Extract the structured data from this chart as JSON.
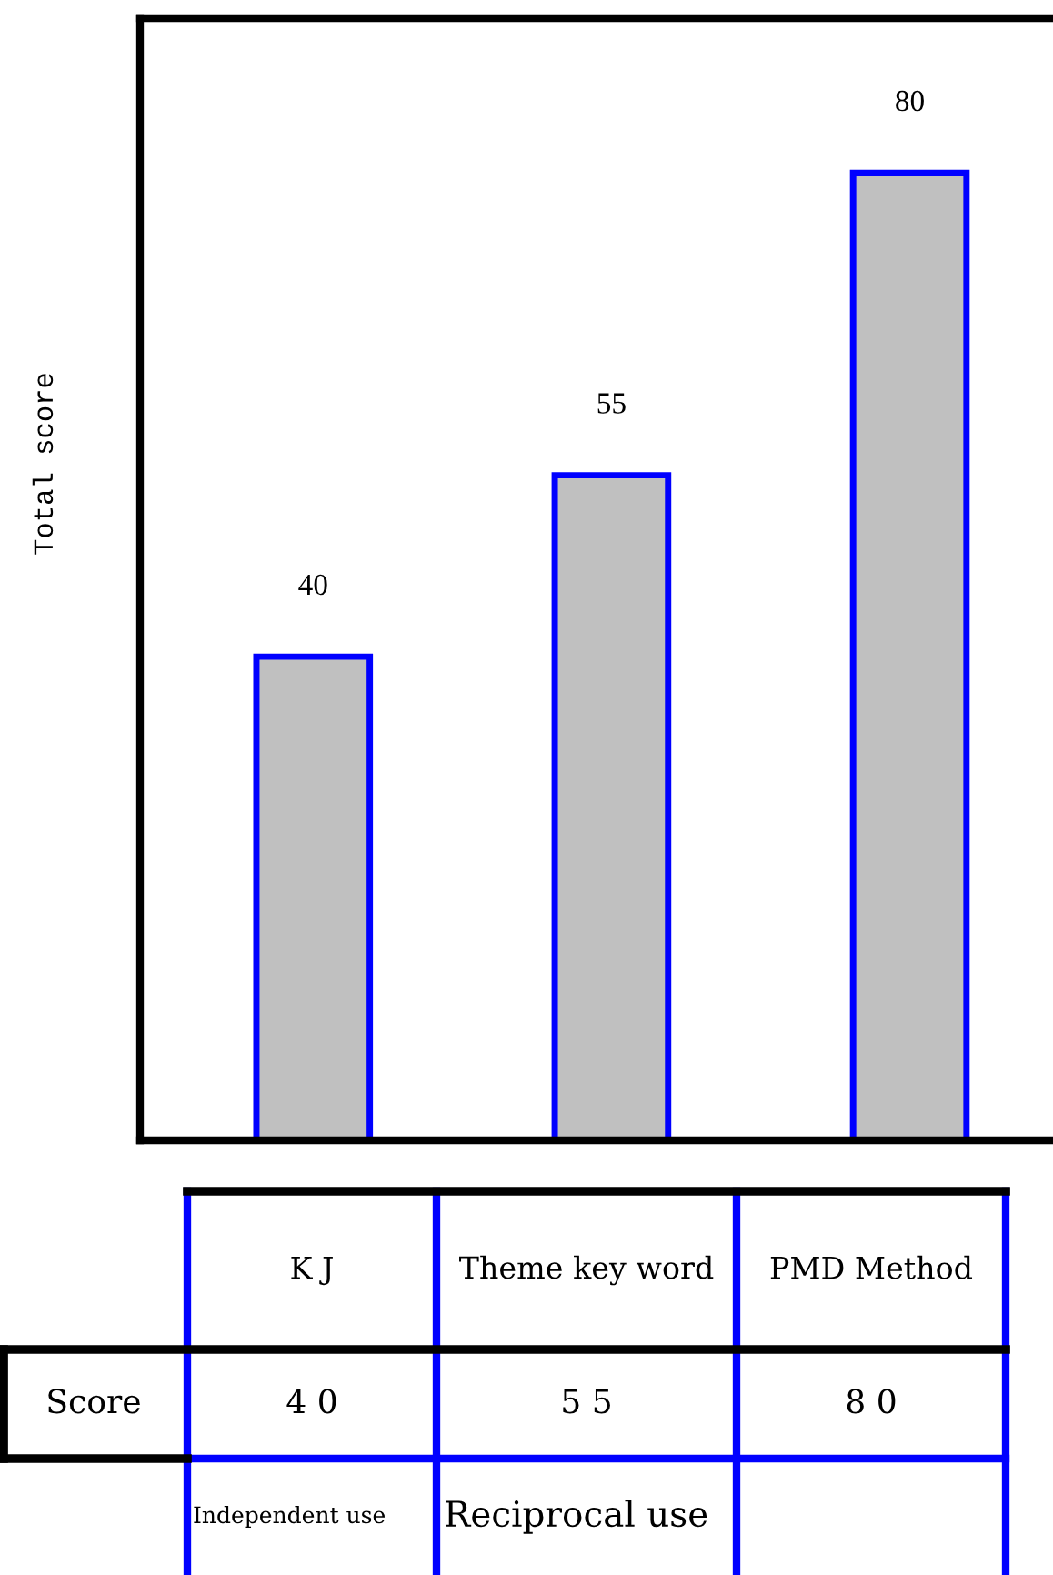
{
  "chart_data": {
    "type": "bar",
    "ylabel": "Total score",
    "categories": [
      "K J",
      "Theme key word",
      "PMD Method"
    ],
    "series": [
      {
        "color": "#c0c0c0",
        "values": [
          40,
          55,
          80
        ]
      }
    ],
    "data_labels": true,
    "annotations": [
      "Score",
      "4 0",
      "5 5",
      "8 0",
      "Independent use",
      "Reciprocal use"
    ]
  }
}
